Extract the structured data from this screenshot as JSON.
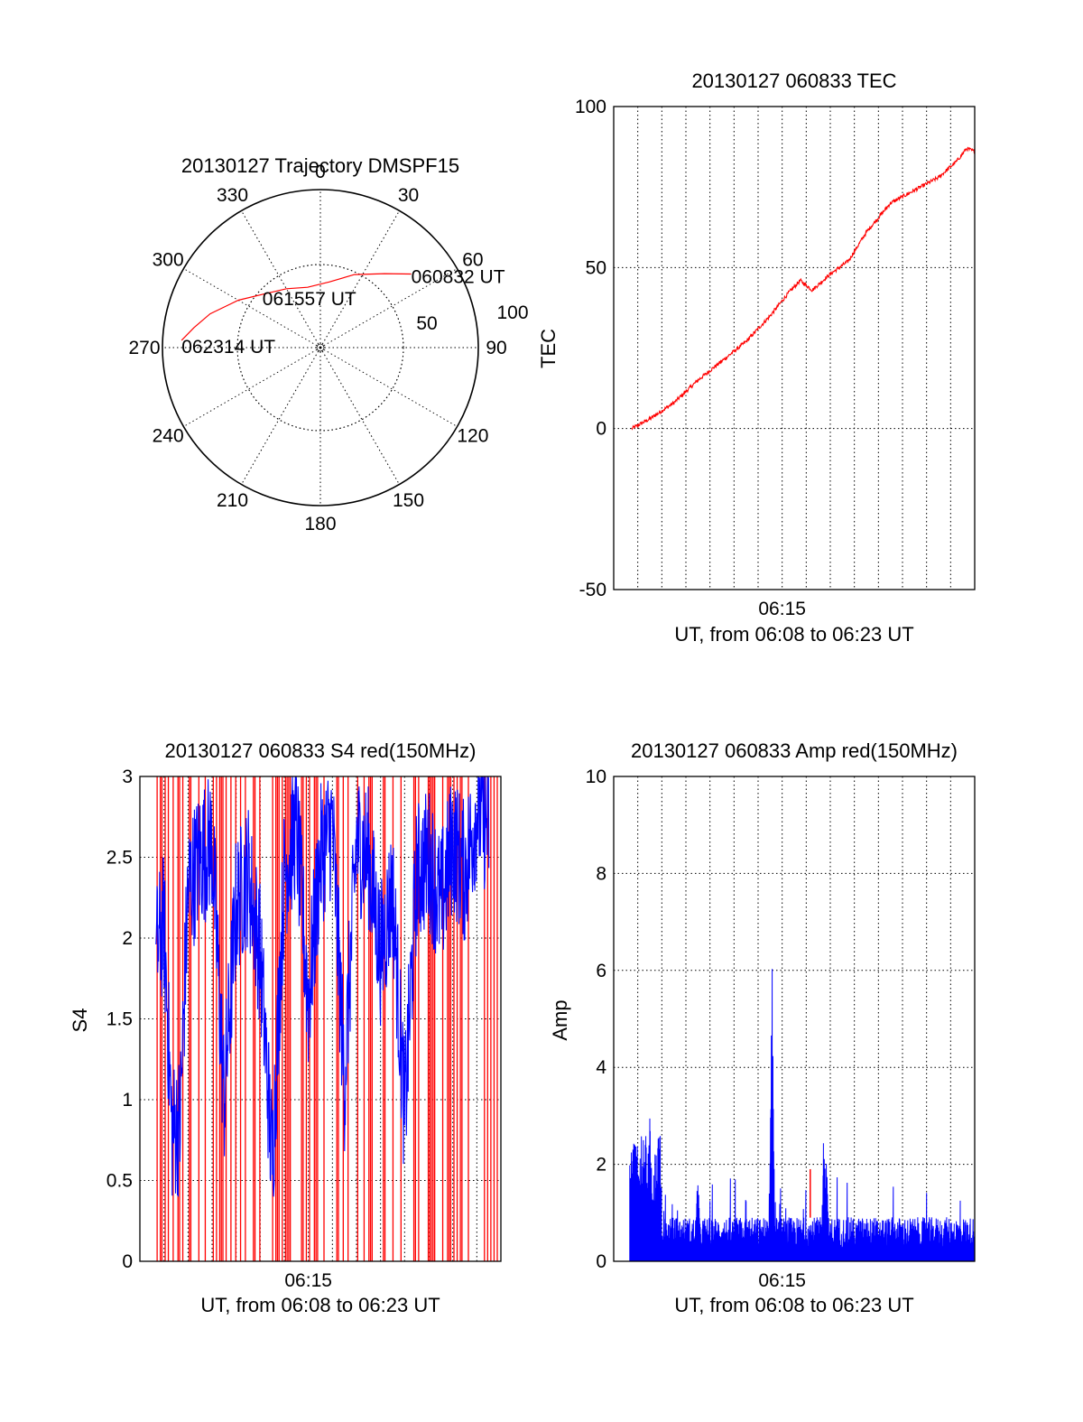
{
  "chart_data": [
    {
      "type": "polar",
      "title": "20130127 Trajectory DMSPF15",
      "azimuth_labels": [
        "0",
        "30",
        "60",
        "90",
        "120",
        "150",
        "180",
        "210",
        "240",
        "270",
        "300",
        "330"
      ],
      "radial_labels": [
        "50",
        "100"
      ],
      "grid": true,
      "trajectory_color": "#ff0000",
      "trajectory": {
        "points": [
          {
            "az": 273,
            "el": 2
          },
          {
            "az": 279,
            "el": 9
          },
          {
            "az": 287,
            "el": 17
          },
          {
            "az": 300,
            "el": 30
          },
          {
            "az": 314,
            "el": 41
          },
          {
            "az": 330,
            "el": 47
          },
          {
            "az": 348,
            "el": 51
          },
          {
            "az": 8,
            "el": 48
          },
          {
            "az": 25,
            "el": 39
          },
          {
            "az": 41,
            "el": 28
          },
          {
            "az": 51,
            "el": 16
          }
        ],
        "labels": [
          {
            "text": "060832 UT",
            "at_point": 10
          },
          {
            "text": "061557 UT",
            "at_point": 6
          },
          {
            "text": "062314 UT",
            "at_point": 0
          }
        ]
      }
    },
    {
      "type": "line",
      "title": "20130127 060833 TEC",
      "xlabel": "UT, from 06:08 to 06:23 UT",
      "ylabel": "TEC",
      "xlim": [
        "06:08",
        "06:23"
      ],
      "ylim": [
        -50,
        100
      ],
      "x_ticks": [
        "06:15"
      ],
      "y_ticks": [
        "-50",
        "0",
        "50",
        "100"
      ],
      "grid": true,
      "series": [
        {
          "color": "#ff0000",
          "x": [
            "06:08:45",
            "06:09:30",
            "06:10:30",
            "06:11:30",
            "06:12:30",
            "06:13:30",
            "06:14:30",
            "06:15:15",
            "06:15:45",
            "06:16:15",
            "06:17:00",
            "06:17:45",
            "06:18:30",
            "06:19:30",
            "06:20:30",
            "06:21:30",
            "06:22:15",
            "06:22:40",
            "06:23:00"
          ],
          "values": [
            0,
            3,
            8,
            15,
            21,
            27,
            35,
            42,
            46,
            43,
            48,
            52,
            61,
            70,
            74,
            78,
            83,
            87,
            86
          ]
        }
      ]
    },
    {
      "type": "line",
      "title": "20130127 060833 S4 red(150MHz)",
      "xlabel": "UT, from 06:08 to 06:23 UT",
      "ylabel": "S4",
      "xlim": [
        "06:08",
        "06:23"
      ],
      "ylim": [
        0,
        3
      ],
      "x_ticks": [
        "06:15"
      ],
      "y_ticks": [
        "0",
        "0.5",
        "1",
        "1.5",
        "2",
        "2.5",
        "3"
      ],
      "grid": true,
      "series": [
        {
          "color": "#0000ff",
          "x": [
            "06:08:40",
            "06:09:00",
            "06:09:20",
            "06:09:40",
            "06:10:00",
            "06:10:30",
            "06:11:00",
            "06:11:30",
            "06:12:00",
            "06:12:30",
            "06:13:00",
            "06:13:30",
            "06:14:00",
            "06:14:30",
            "06:15:00",
            "06:15:30",
            "06:16:00",
            "06:16:30",
            "06:17:00",
            "06:17:30",
            "06:18:00",
            "06:18:30",
            "06:19:00",
            "06:19:30",
            "06:20:00",
            "06:20:30",
            "06:21:00",
            "06:21:30",
            "06:22:00",
            "06:22:30"
          ],
          "values": [
            1.9,
            2.1,
            0.8,
            0.85,
            2.3,
            2.5,
            2.6,
            1.0,
            2.2,
            2.4,
            1.9,
            0.6,
            2.4,
            2.7,
            1.6,
            2.5,
            2.7,
            1.1,
            2.6,
            2.5,
            1.9,
            2.3,
            0.9,
            2.4,
            2.5,
            2.2,
            2.6,
            2.4,
            2.8,
            2.7
          ]
        },
        {
          "color": "#ff0000",
          "style": "vertical spikes to 3 (saturated)"
        }
      ]
    },
    {
      "type": "bar",
      "title": "20130127 060833 Amp red(150MHz)",
      "xlabel": "UT, from 06:08 to 06:23 UT",
      "ylabel": "Amp",
      "xlim": [
        "06:08",
        "06:23"
      ],
      "ylim": [
        0,
        10
      ],
      "x_ticks": [
        "06:15"
      ],
      "y_ticks": [
        "0",
        "2",
        "4",
        "6",
        "8",
        "10"
      ],
      "grid": true,
      "series": [
        {
          "color": "#0000ff",
          "peaks": [
            {
              "x": "06:09:30",
              "value": 3.3
            },
            {
              "x": "06:11:30",
              "value": 2.1
            },
            {
              "x": "06:13:30",
              "value": 1.5
            },
            {
              "x": "06:14:35",
              "value": 6.8
            },
            {
              "x": "06:16:45",
              "value": 3.4
            },
            {
              "x": "06:16:50",
              "value": 2.4
            }
          ],
          "baseline": 0.7
        },
        {
          "color": "#ff0000",
          "peaks": [
            {
              "x": "06:16:10",
              "value": 1.9
            }
          ]
        }
      ]
    }
  ]
}
